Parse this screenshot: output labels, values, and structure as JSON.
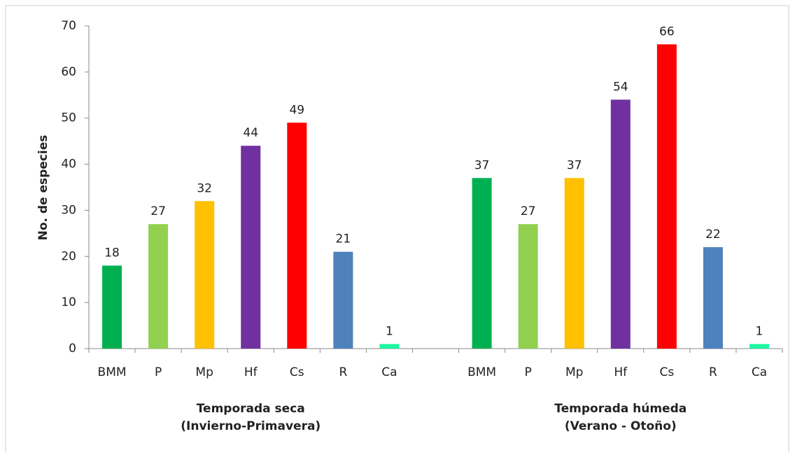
{
  "chart_data": {
    "type": "bar",
    "ylabel": "No. de especies",
    "ylim": [
      0,
      70
    ],
    "yticks": [
      0,
      10,
      20,
      30,
      40,
      50,
      60,
      70
    ],
    "grid": false,
    "colors": [
      "#00b050",
      "#92d050",
      "#ffc000",
      "#7030a0",
      "#ff0000",
      "#4f81bd",
      "#1ef5a0"
    ],
    "groups": [
      {
        "labels": [
          "Temporada seca",
          "(Invierno-Primavera)"
        ],
        "categories": [
          "BMM",
          "P",
          "Mp",
          "Hf",
          "Cs",
          "R",
          "Ca"
        ],
        "values": [
          18,
          27,
          32,
          44,
          49,
          21,
          1
        ]
      },
      {
        "labels": [
          "Temporada húmeda",
          "(Verano - Otoño)"
        ],
        "categories": [
          "BMM",
          "P",
          "Mp",
          "Hf",
          "Cs",
          "R",
          "Ca"
        ],
        "values": [
          37,
          27,
          37,
          54,
          66,
          22,
          1
        ]
      }
    ]
  }
}
